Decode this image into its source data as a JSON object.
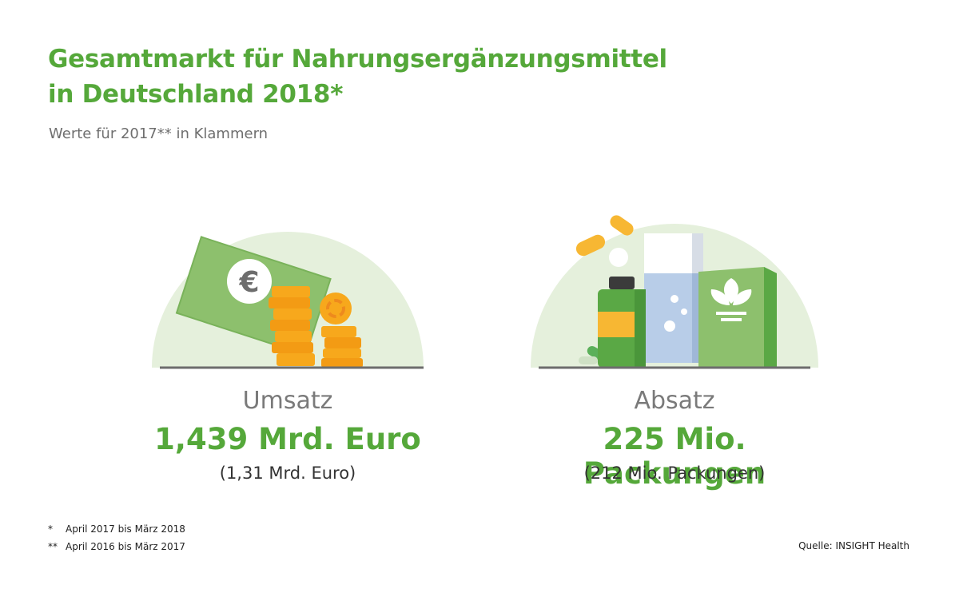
{
  "title": {
    "line1": "Gesamtmarkt für Nahrungsergänzungsmittel",
    "line2": "in Deutschland 2018*"
  },
  "subtitle": "Werte für 2017** in Klammern",
  "colors": {
    "accent": "#55a83a",
    "circle": "#e5f0dc",
    "coin": "#f7a81c",
    "bill": "#8dc06d"
  },
  "metrics": [
    {
      "icon": "money-icon",
      "label": "Umsatz",
      "value": "1,439 Mrd. Euro",
      "previous": "(1,31 Mrd. Euro)"
    },
    {
      "icon": "supplements-icon",
      "label": "Absatz",
      "value": "225 Mio. Packungen",
      "previous": "(212 Mio. Packungen)"
    }
  ],
  "footnotes": [
    {
      "mark": "*",
      "text": "April 2017 bis März 2018"
    },
    {
      "mark": "**",
      "text": "April 2016 bis März 2017"
    }
  ],
  "source": "Quelle: INSIGHT Health",
  "euro_symbol": "€"
}
